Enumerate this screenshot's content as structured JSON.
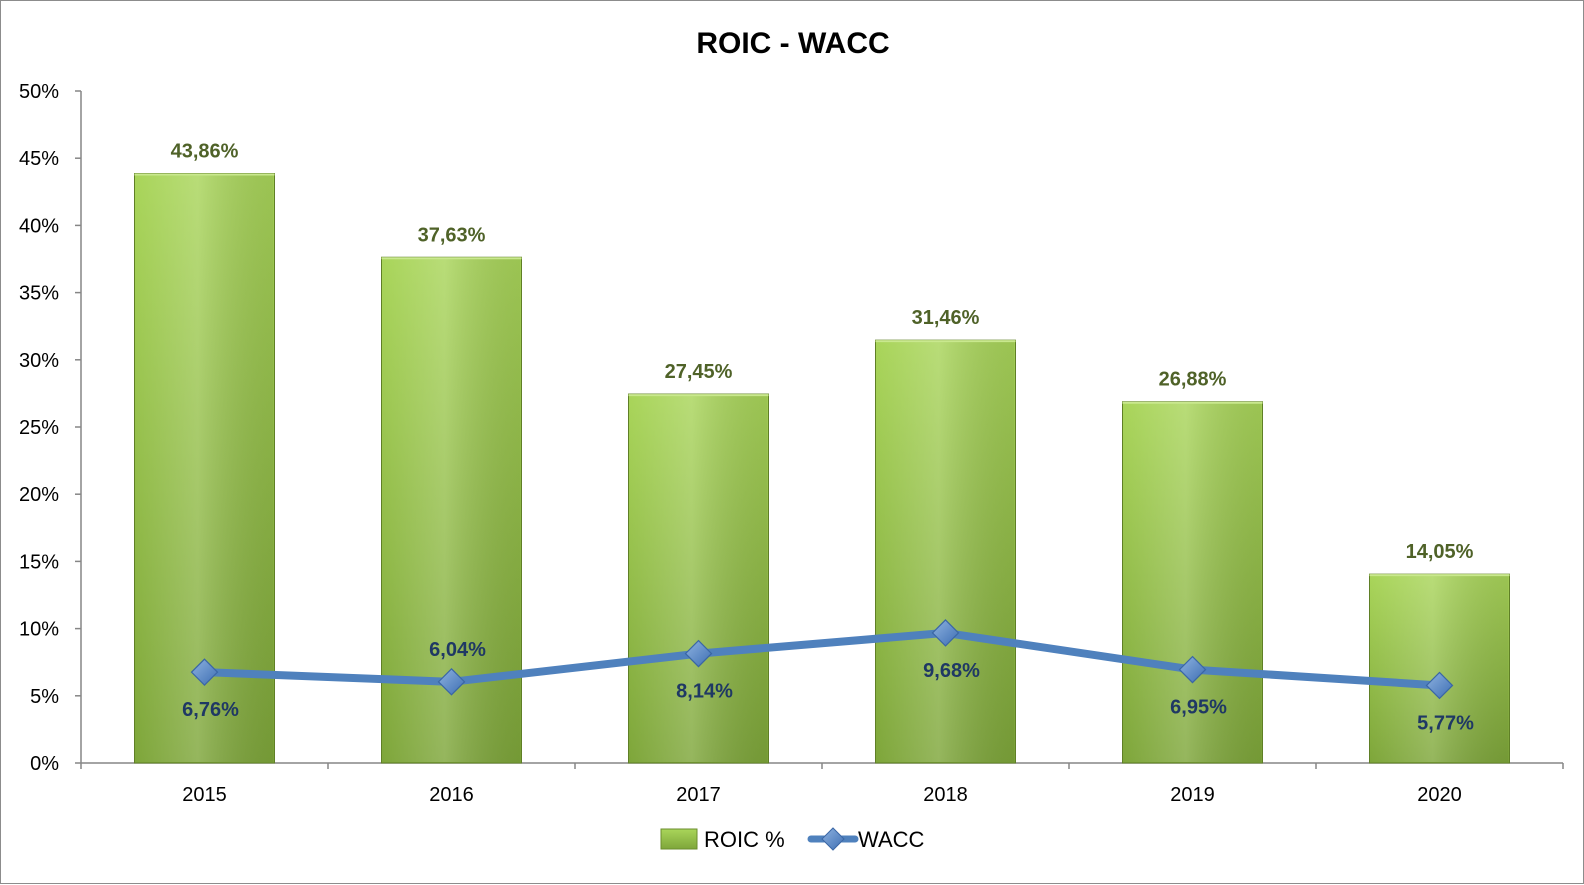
{
  "chart_data": {
    "type": "bar",
    "title": "ROIC - WACC",
    "categories": [
      "2015",
      "2016",
      "2017",
      "2018",
      "2019",
      "2020"
    ],
    "ylim": [
      0,
      50
    ],
    "yticks": [
      0,
      5,
      10,
      15,
      20,
      25,
      30,
      35,
      40,
      45,
      50
    ],
    "ytick_labels": [
      "0%",
      "5%",
      "10%",
      "15%",
      "20%",
      "25%",
      "30%",
      "35%",
      "40%",
      "45%",
      "50%"
    ],
    "grid": false,
    "legend_position": "bottom",
    "series": [
      {
        "name": "ROIC %",
        "type": "bar",
        "values": [
          43.86,
          37.63,
          27.45,
          31.46,
          26.88,
          14.05
        ],
        "labels": [
          "43,86%",
          "37,63%",
          "27,45%",
          "31,46%",
          "26,88%",
          "14,05%"
        ],
        "color": "#92c83e"
      },
      {
        "name": "WACC",
        "type": "line",
        "values": [
          6.76,
          6.04,
          8.14,
          9.68,
          6.95,
          5.77
        ],
        "labels": [
          "6,76%",
          "6,04%",
          "8,14%",
          "9,68%",
          "6,95%",
          "5,77%"
        ],
        "label_side": [
          "below",
          "above",
          "below",
          "below",
          "below",
          "below"
        ],
        "color": "#4f81bd"
      }
    ]
  }
}
